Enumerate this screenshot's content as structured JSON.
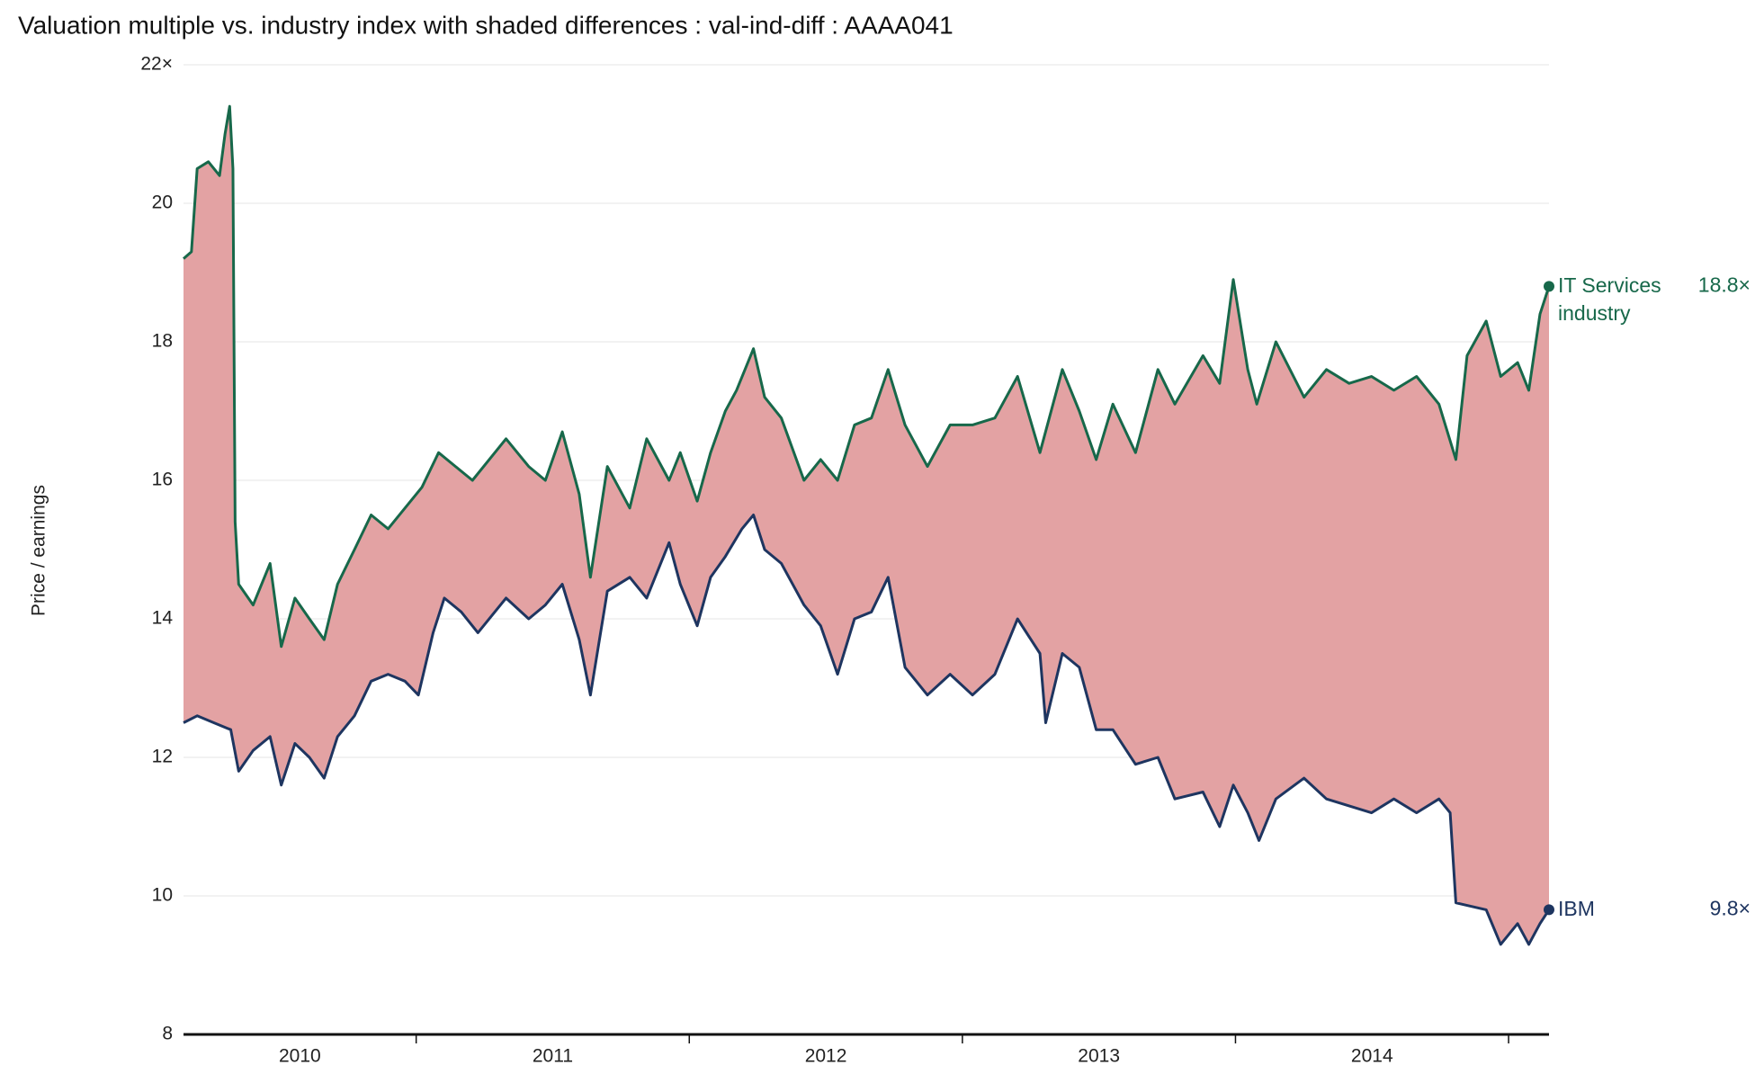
{
  "chart_data": {
    "type": "line",
    "title": "Valuation multiple vs. industry index  with shaded differences : val-ind-diff : AAAA041",
    "y_label": "Price / earnings",
    "xlim": [
      2010.148,
      2015.148
    ],
    "xticks": [
      2011,
      2012,
      2013,
      2014,
      2015
    ],
    "xtick_labels": [
      {
        "value": 2010.574,
        "label": "2010"
      },
      {
        "value": 2011.5,
        "label": "2011"
      },
      {
        "value": 2012.5,
        "label": "2012"
      },
      {
        "value": 2013.5,
        "label": "2013"
      },
      {
        "value": 2014.5,
        "label": "2014"
      }
    ],
    "ylim": [
      8,
      22
    ],
    "yticks": [
      8,
      10,
      12,
      14,
      16,
      18,
      20,
      {
        "value": 22,
        "label": "22×"
      }
    ],
    "grid": true,
    "shade_color": "#e3a2a3",
    "series": [
      {
        "name": "IT Services industry",
        "color": "#17684a",
        "last_value_label": "18.8×",
        "x": [
          2010.148,
          2010.177,
          2010.198,
          2010.239,
          2010.28,
          2010.3,
          2010.317,
          2010.329,
          2010.337,
          2010.35,
          2010.403,
          2010.465,
          2010.506,
          2010.556,
          2010.609,
          2010.663,
          2010.712,
          2010.774,
          2010.835,
          2010.897,
          2010.959,
          2011.021,
          2011.082,
          2011.144,
          2011.206,
          2011.329,
          2011.412,
          2011.473,
          2011.535,
          2011.597,
          2011.638,
          2011.7,
          2011.782,
          2011.844,
          2011.926,
          2011.967,
          2012.029,
          2012.078,
          2012.132,
          2012.173,
          2012.235,
          2012.276,
          2012.337,
          2012.42,
          2012.481,
          2012.543,
          2012.605,
          2012.667,
          2012.728,
          2012.79,
          2012.872,
          2012.955,
          2013.037,
          2013.119,
          2013.202,
          2013.284,
          2013.366,
          2013.428,
          2013.49,
          2013.551,
          2013.634,
          2013.716,
          2013.778,
          2013.881,
          2013.942,
          2013.992,
          2014.045,
          2014.078,
          2014.148,
          2014.251,
          2014.333,
          2014.416,
          2014.498,
          2014.58,
          2014.663,
          2014.745,
          2014.807,
          2014.848,
          2014.918,
          2014.971,
          2015.033,
          2015.074,
          2015.115,
          2015.148
        ],
        "values": [
          19.2,
          19.3,
          20.5,
          20.6,
          20.4,
          21.0,
          21.4,
          20.5,
          15.4,
          14.5,
          14.2,
          14.8,
          13.6,
          14.3,
          14.0,
          13.7,
          14.5,
          15.0,
          15.5,
          15.3,
          15.6,
          15.9,
          16.4,
          16.2,
          16.0,
          16.6,
          16.2,
          16.0,
          16.7,
          15.8,
          14.6,
          16.2,
          15.6,
          16.6,
          16.0,
          16.4,
          15.7,
          16.4,
          17.0,
          17.3,
          17.9,
          17.2,
          16.9,
          16.0,
          16.3,
          16.0,
          16.8,
          16.9,
          17.6,
          16.8,
          16.2,
          16.8,
          16.8,
          16.9,
          17.5,
          16.4,
          17.6,
          17.0,
          16.3,
          17.1,
          16.4,
          17.6,
          17.1,
          17.8,
          17.4,
          18.9,
          17.6,
          17.1,
          18.0,
          17.2,
          17.6,
          17.4,
          17.5,
          17.3,
          17.5,
          17.1,
          16.3,
          17.8,
          18.3,
          17.5,
          17.7,
          17.3,
          18.4,
          18.8
        ]
      },
      {
        "name": "IBM",
        "color": "#1e3560",
        "last_value_label": "9.8×",
        "x": [
          2010.148,
          2010.198,
          2010.259,
          2010.321,
          2010.35,
          2010.403,
          2010.465,
          2010.506,
          2010.556,
          2010.609,
          2010.663,
          2010.712,
          2010.774,
          2010.835,
          2010.897,
          2010.959,
          2011.008,
          2011.062,
          2011.103,
          2011.165,
          2011.226,
          2011.329,
          2011.412,
          2011.473,
          2011.535,
          2011.597,
          2011.638,
          2011.7,
          2011.782,
          2011.844,
          2011.926,
          2011.967,
          2012.029,
          2012.078,
          2012.132,
          2012.193,
          2012.235,
          2012.276,
          2012.337,
          2012.42,
          2012.481,
          2012.543,
          2012.605,
          2012.667,
          2012.728,
          2012.79,
          2012.872,
          2012.955,
          2013.037,
          2013.119,
          2013.202,
          2013.284,
          2013.305,
          2013.366,
          2013.428,
          2013.49,
          2013.551,
          2013.634,
          2013.716,
          2013.778,
          2013.881,
          2013.942,
          2013.992,
          2014.045,
          2014.086,
          2014.148,
          2014.251,
          2014.333,
          2014.416,
          2014.498,
          2014.58,
          2014.663,
          2014.745,
          2014.786,
          2014.807,
          2014.918,
          2014.971,
          2015.033,
          2015.074,
          2015.115,
          2015.148
        ],
        "values": [
          12.5,
          12.6,
          12.5,
          12.4,
          11.8,
          12.1,
          12.3,
          11.6,
          12.2,
          12.0,
          11.7,
          12.3,
          12.6,
          13.1,
          13.2,
          13.1,
          12.9,
          13.8,
          14.3,
          14.1,
          13.8,
          14.3,
          14.0,
          14.2,
          14.5,
          13.7,
          12.9,
          14.4,
          14.6,
          14.3,
          15.1,
          14.5,
          13.9,
          14.6,
          14.9,
          15.3,
          15.5,
          15.0,
          14.8,
          14.2,
          13.9,
          13.2,
          14.0,
          14.1,
          14.6,
          13.3,
          12.9,
          13.2,
          12.9,
          13.2,
          14.0,
          13.5,
          12.5,
          13.5,
          13.3,
          12.4,
          12.4,
          11.9,
          12.0,
          11.4,
          11.5,
          11.0,
          11.6,
          11.2,
          10.8,
          11.4,
          11.7,
          11.4,
          11.3,
          11.2,
          11.4,
          11.2,
          11.4,
          11.2,
          9.9,
          9.8,
          9.3,
          9.6,
          9.3,
          9.6,
          9.8
        ]
      }
    ]
  }
}
